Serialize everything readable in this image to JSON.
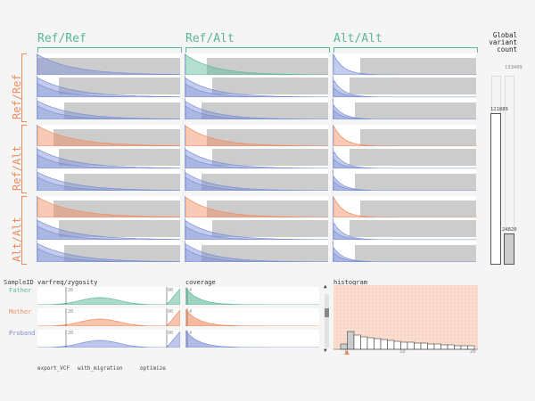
{
  "columns": [
    {
      "label": "Ref/Ref"
    },
    {
      "label": "Ref/Alt"
    },
    {
      "label": "Alt/Alt"
    }
  ],
  "rows": [
    {
      "label": "Ref/Ref"
    },
    {
      "label": "Ref/Alt"
    },
    {
      "label": "Alt/Alt"
    }
  ],
  "global": {
    "title_l1": "Global",
    "title_l2": "variant",
    "title_l3": "count",
    "max_value": "133409",
    "bar1_value": "121889",
    "bar2_value": "24820"
  },
  "bottom": {
    "sampleid_header": "SampleID",
    "varfreq_header": "varfreq/zygosity",
    "coverage_header": "coverage",
    "histogram_header": "histogram",
    "samples": [
      {
        "name": "Father"
      },
      {
        "name": "Mother"
      },
      {
        "name": "Proband"
      }
    ],
    "varfreq_left_tick": "20",
    "varfreq_right_tick": "90",
    "coverage_tick": "4",
    "histogram_ticks": [
      "0",
      "10",
      "20"
    ]
  },
  "buttons": {
    "export": "export_VCF",
    "migration": "with_migration",
    "optimize": "optimize"
  },
  "colors": {
    "green": "#5cb897",
    "orange": "#f08a5d",
    "blue": "#7b8fd4",
    "grey": "#cccccc"
  }
}
